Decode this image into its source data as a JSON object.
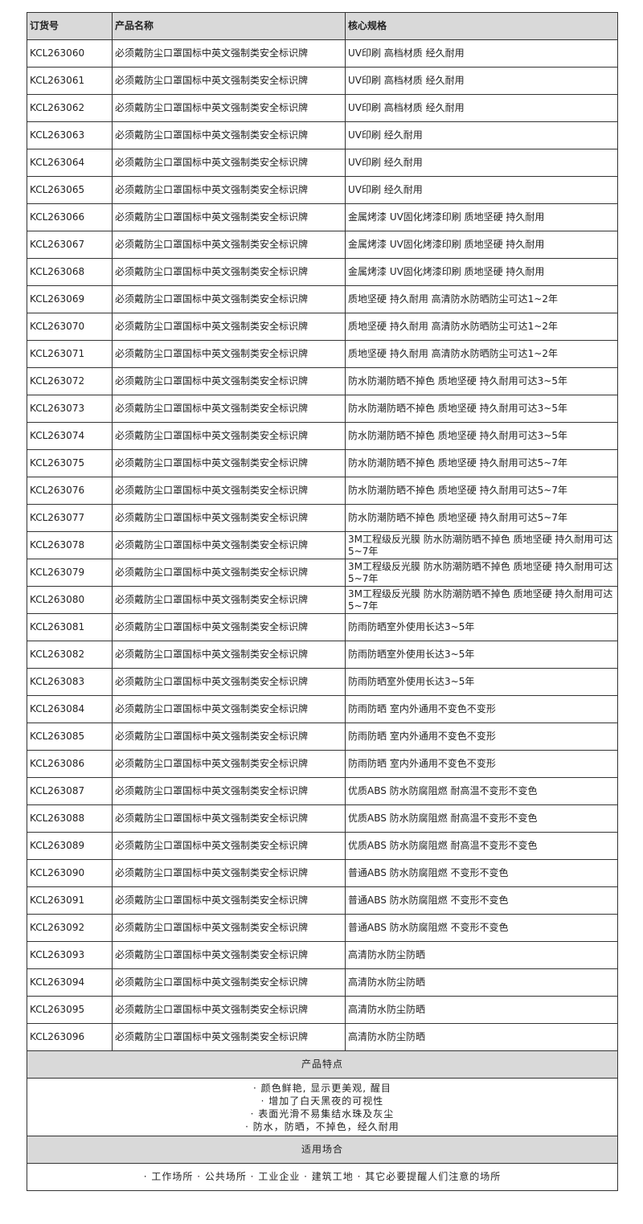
{
  "headers": [
    "订货号",
    "产品名称",
    "核心规格"
  ],
  "product_name": "必须戴防尘口罩国标中英文强制类安全标识牌",
  "rows": [
    {
      "code": "KCL263060",
      "spec": "UV印刷 高档材质 经久耐用"
    },
    {
      "code": "KCL263061",
      "spec": "UV印刷 高档材质 经久耐用"
    },
    {
      "code": "KCL263062",
      "spec": "UV印刷 高档材质 经久耐用"
    },
    {
      "code": "KCL263063",
      "spec": "UV印刷 经久耐用"
    },
    {
      "code": "KCL263064",
      "spec": "UV印刷 经久耐用"
    },
    {
      "code": "KCL263065",
      "spec": "UV印刷 经久耐用"
    },
    {
      "code": "KCL263066",
      "spec": "金属烤漆 UV固化烤漆印刷 质地坚硬 持久耐用"
    },
    {
      "code": "KCL263067",
      "spec": "金属烤漆 UV固化烤漆印刷 质地坚硬 持久耐用"
    },
    {
      "code": "KCL263068",
      "spec": "金属烤漆 UV固化烤漆印刷 质地坚硬 持久耐用"
    },
    {
      "code": "KCL263069",
      "spec": "质地坚硬 持久耐用 高清防水防晒防尘可达1~2年"
    },
    {
      "code": "KCL263070",
      "spec": "质地坚硬 持久耐用 高清防水防晒防尘可达1~2年"
    },
    {
      "code": "KCL263071",
      "spec": "质地坚硬 持久耐用 高清防水防晒防尘可达1~2年"
    },
    {
      "code": "KCL263072",
      "spec": "防水防潮防晒不掉色 质地坚硬 持久耐用可达3~5年"
    },
    {
      "code": "KCL263073",
      "spec": "防水防潮防晒不掉色 质地坚硬 持久耐用可达3~5年"
    },
    {
      "code": "KCL263074",
      "spec": "防水防潮防晒不掉色 质地坚硬 持久耐用可达3~5年"
    },
    {
      "code": "KCL263075",
      "spec": "防水防潮防晒不掉色 质地坚硬 持久耐用可达5~7年"
    },
    {
      "code": "KCL263076",
      "spec": "防水防潮防晒不掉色 质地坚硬 持久耐用可达5~7年"
    },
    {
      "code": "KCL263077",
      "spec": "防水防潮防晒不掉色 质地坚硬 持久耐用可达5~7年"
    },
    {
      "code": "KCL263078",
      "spec": "3M工程级反光膜 防水防潮防晒不掉色 质地坚硬 持久耐用可达5~7年"
    },
    {
      "code": "KCL263079",
      "spec": "3M工程级反光膜 防水防潮防晒不掉色 质地坚硬 持久耐用可达5~7年"
    },
    {
      "code": "KCL263080",
      "spec": "3M工程级反光膜 防水防潮防晒不掉色 质地坚硬 持久耐用可达5~7年"
    },
    {
      "code": "KCL263081",
      "spec": "防雨防晒室外使用长达3~5年"
    },
    {
      "code": "KCL263082",
      "spec": "防雨防晒室外使用长达3~5年"
    },
    {
      "code": "KCL263083",
      "spec": "防雨防晒室外使用长达3~5年"
    },
    {
      "code": "KCL263084",
      "spec": "防雨防晒 室内外通用不变色不变形"
    },
    {
      "code": "KCL263085",
      "spec": "防雨防晒 室内外通用不变色不变形"
    },
    {
      "code": "KCL263086",
      "spec": "防雨防晒 室内外通用不变色不变形"
    },
    {
      "code": "KCL263087",
      "spec": "优质ABS 防水防腐阻燃 耐高温不变形不变色"
    },
    {
      "code": "KCL263088",
      "spec": "优质ABS 防水防腐阻燃 耐高温不变形不变色"
    },
    {
      "code": "KCL263089",
      "spec": "优质ABS 防水防腐阻燃 耐高温不变形不变色"
    },
    {
      "code": "KCL263090",
      "spec": "普通ABS 防水防腐阻燃 不变形不变色"
    },
    {
      "code": "KCL263091",
      "spec": "普通ABS 防水防腐阻燃 不变形不变色"
    },
    {
      "code": "KCL263092",
      "spec": "普通ABS 防水防腐阻燃 不变形不变色"
    },
    {
      "code": "KCL263093",
      "spec": "高清防水防尘防晒"
    },
    {
      "code": "KCL263094",
      "spec": "高清防水防尘防晒"
    },
    {
      "code": "KCL263095",
      "spec": "高清防水防尘防晒"
    },
    {
      "code": "KCL263096",
      "spec": "高清防水防尘防晒"
    }
  ],
  "features": {
    "title": "产品特点",
    "items": [
      "· 颜色鲜艳, 显示更美观, 醒目",
      "· 增加了白天黑夜的可视性",
      "· 表面光滑不易集结水珠及灰尘",
      "· 防水，防晒，不掉色，经久耐用"
    ]
  },
  "usage": {
    "title": "适用场合",
    "text": "· 工作场所 · 公共场所 · 工业企业 · 建筑工地 · 其它必要提醒人们注意的场所"
  }
}
